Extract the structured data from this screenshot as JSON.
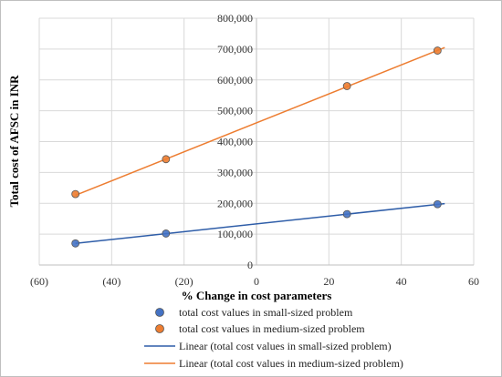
{
  "chart_data": {
    "type": "scatter",
    "xlabel": "% Change in cost parameters",
    "ylabel": "Total cost of AFSC in INR",
    "xlim": [
      -60,
      60
    ],
    "ylim": [
      0,
      800000
    ],
    "x_ticks": [
      "(60)",
      "(40)",
      "(20)",
      "0",
      "20",
      "40",
      "60"
    ],
    "x_tick_values": [
      -60,
      -40,
      -20,
      0,
      20,
      40,
      60
    ],
    "y_ticks": [
      "0",
      "100,000",
      "200,000",
      "300,000",
      "400,000",
      "500,000",
      "600,000",
      "700,000",
      "800,000"
    ],
    "y_tick_values": [
      0,
      100000,
      200000,
      300000,
      400000,
      500000,
      600000,
      700000,
      800000
    ],
    "grid": true,
    "legend_position": "bottom",
    "series": [
      {
        "name": "total cost values in small-sized problem",
        "kind": "scatter",
        "color": "#4472C4",
        "x": [
          -50,
          -25,
          25,
          50
        ],
        "y": [
          70000,
          102000,
          165000,
          197000
        ]
      },
      {
        "name": "total cost values in medium-sized problem",
        "kind": "scatter",
        "color": "#ED7D31",
        "x": [
          -50,
          -25,
          25,
          50
        ],
        "y": [
          230000,
          343000,
          580000,
          695000
        ]
      },
      {
        "name": "Linear (total cost values in small-sized problem)",
        "kind": "trendline",
        "color": "#2E5DA8",
        "x": [
          -50,
          52
        ],
        "y": [
          70000,
          199000
        ]
      },
      {
        "name": "Linear (total cost values in medium-sized problem)",
        "kind": "trendline",
        "color": "#ED7D31",
        "x": [
          -50,
          52
        ],
        "y": [
          226000,
          705000
        ]
      }
    ]
  }
}
